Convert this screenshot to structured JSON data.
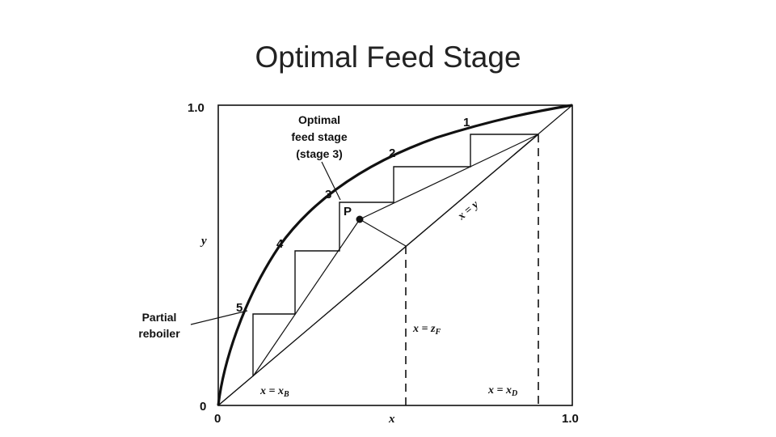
{
  "slide": {
    "title": "Optimal Feed Stage"
  },
  "diagram": {
    "axes": {
      "x_label": "x",
      "y_label": "y",
      "x_min": "0",
      "x_max": "1.0",
      "y_min": "0",
      "y_max": "1.0"
    },
    "curves": {
      "diagonal_label": "x = y"
    },
    "stages": {
      "s1": "1",
      "s2": "2",
      "s3": "3",
      "s4": "4",
      "s5": "5"
    },
    "point_p": "P",
    "callouts": {
      "optimal_line1": "Optimal",
      "optimal_line2": "feed stage",
      "optimal_line3": "(stage 3)",
      "reboiler_line1": "Partial",
      "reboiler_line2": "reboiler"
    },
    "markers": {
      "xb_prefix": "x = x",
      "xb_sub": "B",
      "zf_prefix": "x = z",
      "zf_sub": "F",
      "xd_prefix": "x = x",
      "xd_sub": "D"
    },
    "colors": {
      "ink": "#111111",
      "background": "#ffffff"
    }
  }
}
